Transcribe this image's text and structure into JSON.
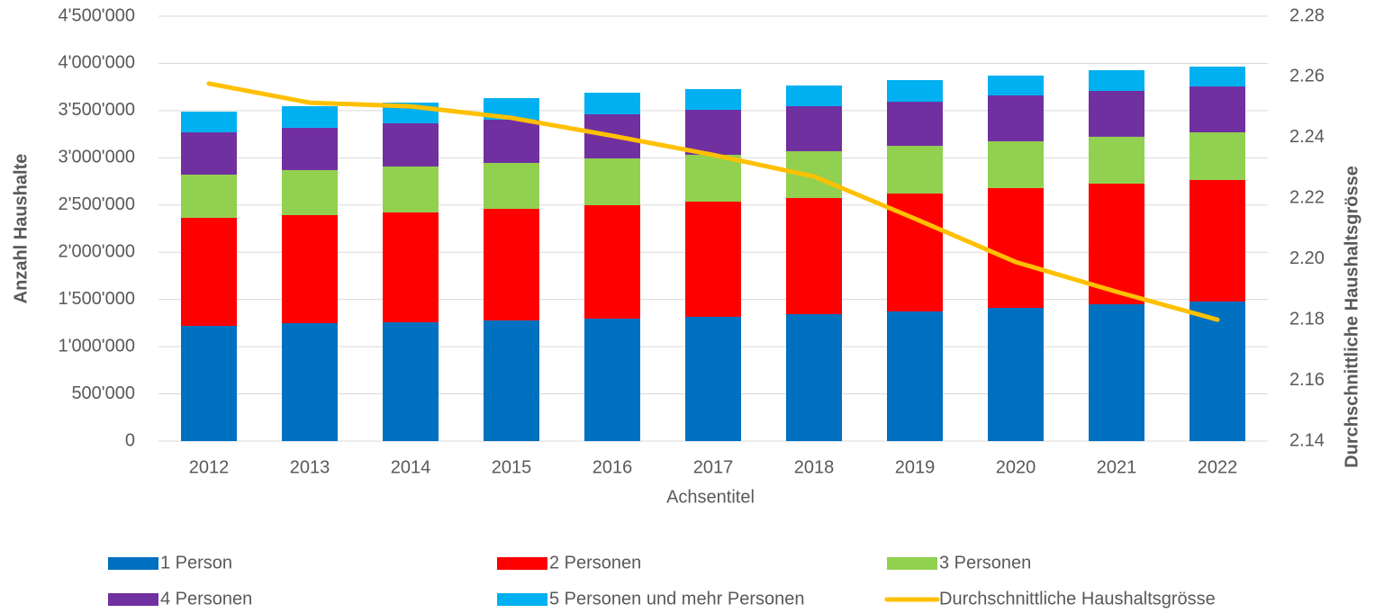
{
  "chart_data": {
    "type": "bar",
    "stacked": true,
    "xlabel": "Achsentitel",
    "ylabel": "Anzahl Haushalte",
    "y2label": "Durchschnittliche Haushaltsgrösse",
    "categories": [
      "2012",
      "2013",
      "2014",
      "2015",
      "2016",
      "2017",
      "2018",
      "2019",
      "2020",
      "2021",
      "2022"
    ],
    "series": [
      {
        "name": "1 Person",
        "color": "#0070c0",
        "values": [
          1220000,
          1249000,
          1258000,
          1278000,
          1297000,
          1316000,
          1344000,
          1373000,
          1411000,
          1449000,
          1478000
        ]
      },
      {
        "name": "2 Personen",
        "color": "#ff0000",
        "values": [
          1145000,
          1144000,
          1164000,
          1182000,
          1201000,
          1220000,
          1230000,
          1249000,
          1268000,
          1278000,
          1287000
        ]
      },
      {
        "name": "3 Personen",
        "color": "#92d050",
        "values": [
          457000,
          477000,
          486000,
          486000,
          496000,
          496000,
          496000,
          505000,
          496000,
          496000,
          505000
        ]
      },
      {
        "name": "4 Personen",
        "color": "#7030a0",
        "values": [
          448000,
          448000,
          458000,
          458000,
          467000,
          477000,
          477000,
          467000,
          486000,
          486000,
          486000
        ]
      },
      {
        "name": "5 Personen und mehr Personen",
        "color": "#00b0f0",
        "values": [
          219000,
          229000,
          219000,
          228000,
          229000,
          219000,
          219000,
          229000,
          210000,
          219000,
          210000
        ]
      },
      {
        "name": "Durchschnittliche Haushaltsgrösse",
        "color": "#ffc000",
        "type": "line",
        "axis": "y2",
        "values": [
          2.2578,
          2.2515,
          2.2503,
          2.2465,
          2.2406,
          2.2343,
          2.2272,
          2.2133,
          2.199,
          2.1892,
          2.18
        ]
      }
    ],
    "ylim": [
      0,
      4500000
    ],
    "yticks": [
      0,
      {
        "value": 500000,
        "label": "500'000"
      },
      {
        "value": 1000000,
        "label": "1'000'000"
      },
      {
        "value": 1500000,
        "label": "1'500'000"
      },
      {
        "value": 2000000,
        "label": "2'000'000"
      },
      {
        "value": 2500000,
        "label": "2'500'000"
      },
      {
        "value": 3000000,
        "label": "3'000'000"
      },
      {
        "value": 3500000,
        "label": "3'500'000"
      },
      {
        "value": 4000000,
        "label": "4'000'000"
      },
      {
        "value": 4500000,
        "label": "4'500'000"
      }
    ],
    "y2lim": [
      2.14,
      2.28
    ],
    "y2ticks": [
      2.14,
      2.16,
      2.18,
      {
        "value": 2.2,
        "label": "2.20"
      },
      2.22,
      2.24,
      2.26,
      2.28
    ],
    "grid": true,
    "legend": "bottom"
  }
}
